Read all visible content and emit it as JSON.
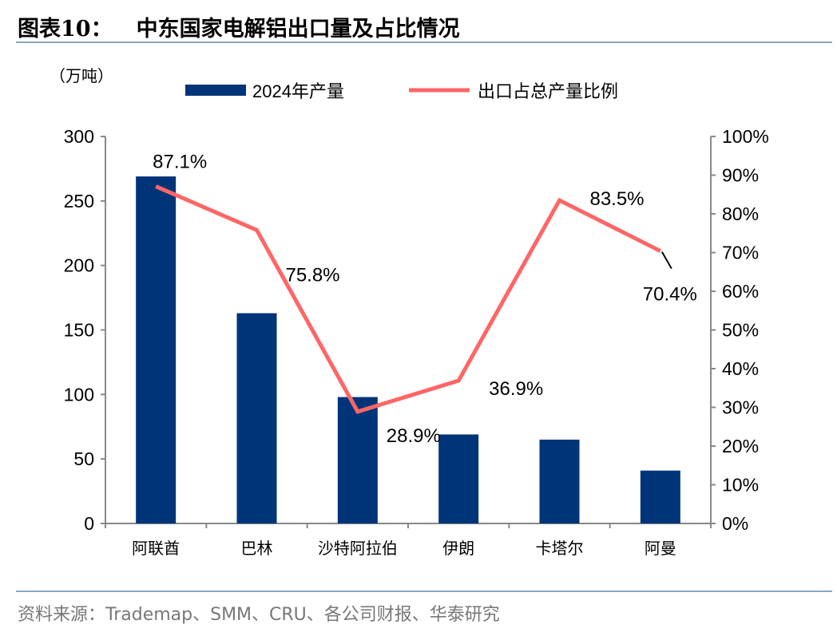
{
  "header": {
    "figure_no": "图表10：",
    "title": "中东国家电解铝出口量及占比情况"
  },
  "footer": {
    "source": "资料来源：Trademap、SMM、CRU、各公司财报、华泰研究"
  },
  "chart_data": {
    "type": "bar+line",
    "unit_label": "（万吨）",
    "categories": [
      "阿联酋",
      "巴林",
      "沙特阿拉伯",
      "伊朗",
      "卡塔尔",
      "阿曼"
    ],
    "series": [
      {
        "name": "2024年产量",
        "type": "bar",
        "axis": "left",
        "color": "#003478",
        "values": [
          269,
          163,
          98,
          69,
          65,
          41
        ]
      },
      {
        "name": "出口占总产量比例",
        "type": "line",
        "axis": "right",
        "color": "#ff6666",
        "values": [
          87.1,
          75.8,
          28.9,
          36.9,
          83.5,
          70.4
        ],
        "labels": [
          "87.1%",
          "75.8%",
          "28.9%",
          "36.9%",
          "83.5%",
          "70.4%"
        ]
      }
    ],
    "y_left": {
      "min": 0,
      "max": 300,
      "ticks": [
        "0",
        "50",
        "100",
        "150",
        "200",
        "250",
        "300"
      ]
    },
    "y_right": {
      "min": 0,
      "max": 100,
      "ticks": [
        "0%",
        "10%",
        "20%",
        "30%",
        "40%",
        "50%",
        "60%",
        "70%",
        "80%",
        "90%",
        "100%"
      ]
    },
    "legend": "top",
    "grid": false
  }
}
